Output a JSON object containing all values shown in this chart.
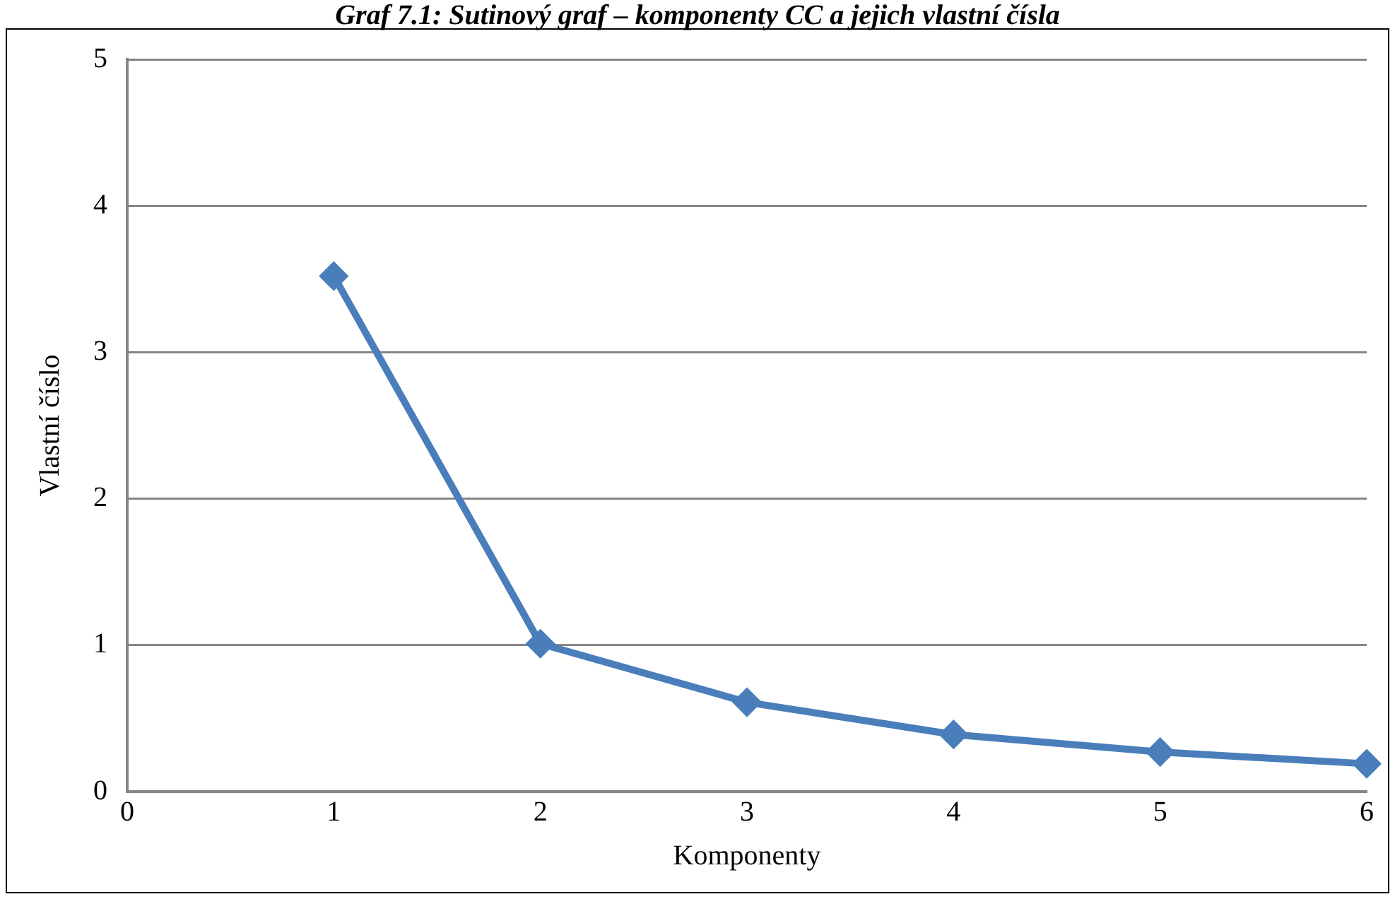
{
  "chart_data": {
    "type": "line",
    "title": "Graf 7.1: Sutinový graf – komponenty CC a jejich vlastní čísla",
    "xlabel": "Komponenty",
    "ylabel": "Vlastní číslo",
    "x": [
      1,
      2,
      3,
      4,
      5,
      6
    ],
    "series": [
      {
        "color": "#4a7ebb",
        "values": [
          3.52,
          1.01,
          0.61,
          0.39,
          0.27,
          0.19
        ]
      }
    ],
    "xlim": [
      0,
      6
    ],
    "xticks": [
      0,
      1,
      2,
      3,
      4,
      5,
      6
    ],
    "ylim": [
      0,
      5
    ],
    "yticks": [
      0,
      1,
      2,
      3,
      4,
      5
    ],
    "grid": "y",
    "legend": false,
    "marker": "diamond",
    "line_style": "solid"
  }
}
